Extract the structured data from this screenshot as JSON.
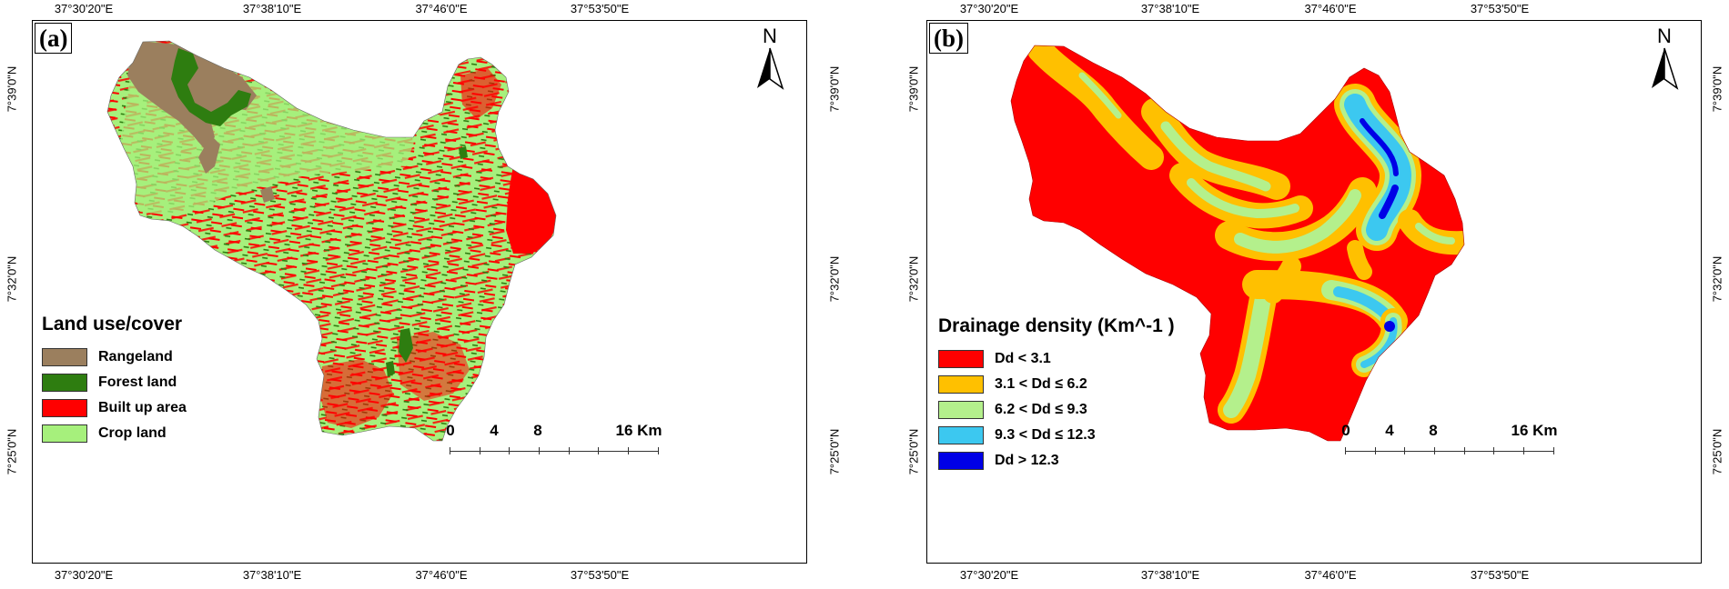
{
  "panel_a": {
    "label": "(a)",
    "north": "N",
    "coords_top": [
      "37°30'20\"E",
      "37°38'10\"E",
      "37°46'0\"E",
      "37°53'50\"E"
    ],
    "coords_bottom": [
      "37°30'20\"E",
      "37°38'10\"E",
      "37°46'0\"E",
      "37°53'50\"E"
    ],
    "coords_left": [
      "7°39'0\"N",
      "7°32'0\"N",
      "7°25'0\"N"
    ],
    "coords_right": [
      "7°39'0\"N",
      "7°32'0\"N",
      "7°25'0\"N"
    ],
    "legend": {
      "title": "Land use/cover",
      "items": [
        {
          "label": "Rangeland",
          "color": "#9b7f5e"
        },
        {
          "label": "Forest land",
          "color": "#2e7d10"
        },
        {
          "label": "Built up area",
          "color": "#ff0000"
        },
        {
          "label": "Crop land",
          "color": "#a6f07c"
        }
      ]
    },
    "scale": {
      "labels": [
        "0",
        "4",
        "8",
        "16 Km"
      ]
    }
  },
  "panel_b": {
    "label": "(b)",
    "north": "N",
    "coords_top": [
      "37°30'20\"E",
      "37°38'10\"E",
      "37°46'0\"E",
      "37°53'50\"E"
    ],
    "coords_bottom": [
      "37°30'20\"E",
      "37°38'10\"E",
      "37°46'0\"E",
      "37°53'50\"E"
    ],
    "coords_left": [
      "7°39'0\"N",
      "7°32'0\"N",
      "7°25'0\"N"
    ],
    "coords_right": [
      "7°39'0\"N",
      "7°32'0\"N",
      "7°25'0\"N"
    ],
    "legend": {
      "title": "Drainage density (Km^-1 )",
      "items": [
        {
          "label": "Dd < 3.1",
          "color": "#ff0000"
        },
        {
          "label": "3.1 < Dd ≤ 6.2",
          "color": "#ffc000"
        },
        {
          "label": "6.2 < Dd ≤ 9.3",
          "color": "#b4f08c"
        },
        {
          "label": "9.3 < Dd ≤ 12.3",
          "color": "#3cc8f0"
        },
        {
          "label": "Dd > 12.3",
          "color": "#0000e6"
        }
      ]
    },
    "scale": {
      "labels": [
        "0",
        "4",
        "8",
        "16 Km"
      ]
    }
  }
}
